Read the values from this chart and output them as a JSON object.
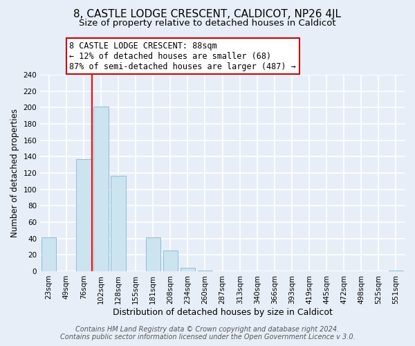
{
  "title": "8, CASTLE LODGE CRESCENT, CALDICOT, NP26 4JL",
  "subtitle": "Size of property relative to detached houses in Caldicot",
  "xlabel": "Distribution of detached houses by size in Caldicot",
  "ylabel": "Number of detached properties",
  "categories": [
    "23sqm",
    "49sqm",
    "76sqm",
    "102sqm",
    "128sqm",
    "155sqm",
    "181sqm",
    "208sqm",
    "234sqm",
    "260sqm",
    "287sqm",
    "313sqm",
    "340sqm",
    "366sqm",
    "393sqm",
    "419sqm",
    "445sqm",
    "472sqm",
    "498sqm",
    "525sqm",
    "551sqm"
  ],
  "values": [
    41,
    0,
    137,
    201,
    117,
    0,
    41,
    25,
    4,
    1,
    0,
    0,
    0,
    0,
    0,
    0,
    0,
    0,
    0,
    0,
    1
  ],
  "bar_color": "#cce4f0",
  "bar_edge_color": "#8bbdd4",
  "vline_color": "red",
  "vline_position": 2.5,
  "ylim": [
    0,
    240
  ],
  "yticks": [
    0,
    20,
    40,
    60,
    80,
    100,
    120,
    140,
    160,
    180,
    200,
    220,
    240
  ],
  "annotation_title": "8 CASTLE LODGE CRESCENT: 88sqm",
  "annotation_line1": "← 12% of detached houses are smaller (68)",
  "annotation_line2": "87% of semi-detached houses are larger (487) →",
  "annotation_box_color": "white",
  "annotation_box_edge": "#cc0000",
  "footer1": "Contains HM Land Registry data © Crown copyright and database right 2024.",
  "footer2": "Contains public sector information licensed under the Open Government Licence v 3.0.",
  "background_color": "#e8eef8",
  "grid_color": "white",
  "title_fontsize": 11,
  "subtitle_fontsize": 9.5,
  "xlabel_fontsize": 9,
  "ylabel_fontsize": 8.5,
  "tick_fontsize": 7.5,
  "annotation_fontsize": 8.5,
  "footer_fontsize": 7
}
